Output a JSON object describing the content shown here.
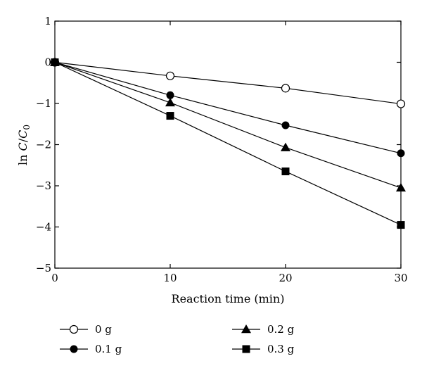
{
  "chart_data": {
    "type": "line",
    "title": "",
    "xlabel": "Reaction time (min)",
    "ylabel": {
      "main": "ln ",
      "c": "C",
      "slash": "/",
      "c0": "C",
      "sub": "0"
    },
    "xlim": [
      0,
      30
    ],
    "ylim": [
      -5,
      1
    ],
    "xticks": [
      0,
      10,
      20,
      30
    ],
    "yticks": [
      1,
      0,
      -1,
      -2,
      -3,
      -4,
      -5
    ],
    "ytick_labels": [
      "1",
      "0",
      "−1",
      "−2",
      "−3",
      "−4",
      "−5"
    ],
    "grid": false,
    "legend_position": "bottom",
    "x": [
      0,
      10,
      20,
      30
    ],
    "series": [
      {
        "name": "0 g",
        "marker": "circle-open",
        "values": [
          0,
          -0.33,
          -0.63,
          -1.01
        ]
      },
      {
        "name": "0.1 g",
        "marker": "circle-filled",
        "values": [
          0,
          -0.8,
          -1.53,
          -2.21
        ]
      },
      {
        "name": "0.2 g",
        "marker": "triangle",
        "values": [
          0,
          -0.98,
          -2.07,
          -3.05
        ]
      },
      {
        "name": "0.3 g",
        "marker": "square",
        "values": [
          0,
          -1.3,
          -2.65,
          -3.95
        ]
      }
    ]
  }
}
